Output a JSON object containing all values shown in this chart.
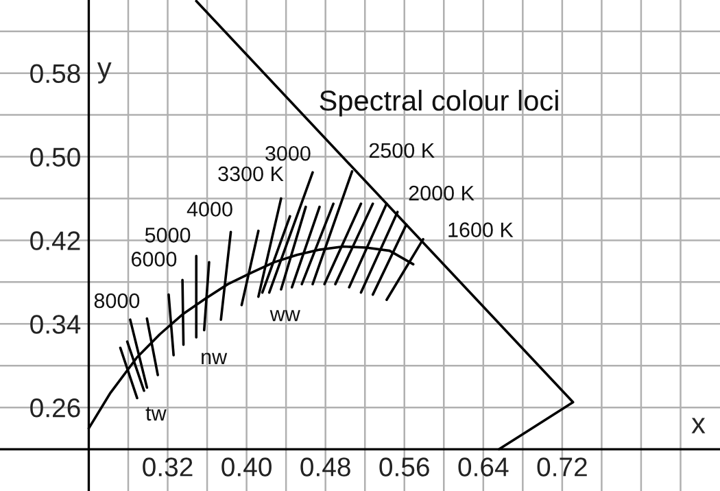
{
  "chart_data": {
    "type": "line",
    "xlabel": "x",
    "ylabel": "y",
    "xlim": [
      0.15,
      0.88
    ],
    "ylim": [
      0.18,
      0.65
    ],
    "xticks": [
      {
        "value": 0.28,
        "label": null
      },
      0.32,
      {
        "value": 0.36,
        "label": null
      },
      {
        "value": 0.4,
        "label": "0.40"
      },
      {
        "value": 0.44,
        "label": null
      },
      0.48,
      {
        "value": 0.52,
        "label": null
      },
      0.56,
      {
        "value": 0.6,
        "label": null
      },
      0.64,
      {
        "value": 0.68,
        "label": null
      },
      0.72,
      {
        "value": 0.76,
        "label": null
      },
      {
        "value": 0.8,
        "label": null
      },
      {
        "value": 0.84,
        "label": null
      }
    ],
    "yticks": [
      0.26,
      {
        "value": 0.3,
        "label": null
      },
      0.34,
      {
        "value": 0.38,
        "label": null
      },
      0.42,
      {
        "value": 0.46,
        "label": null
      },
      {
        "value": 0.5,
        "label": "0.50"
      },
      {
        "value": 0.54,
        "label": null
      },
      0.58,
      {
        "value": 0.62,
        "label": null
      }
    ],
    "grid": true,
    "legend": false,
    "series": [
      {
        "color": "#000000",
        "x": [
          0.349,
          0.731,
          0.656
        ],
        "values": [
          0.649,
          0.265,
          0.22
        ]
      },
      {
        "color": "#000000",
        "x": [
          0.24,
          0.262,
          0.289,
          0.312,
          0.335,
          0.358,
          0.381,
          0.405,
          0.428,
          0.451,
          0.474,
          0.498,
          0.521,
          0.545,
          0.569
        ],
        "values": [
          0.24,
          0.274,
          0.308,
          0.33,
          0.349,
          0.364,
          0.378,
          0.389,
          0.399,
          0.406,
          0.411,
          0.414,
          0.413,
          0.41,
          0.397
        ]
      },
      {
        "color": "#000000",
        "x": [
          0.272,
          0.289,
          null,
          0.279,
          0.296,
          null,
          0.282,
          0.299,
          null,
          0.299,
          0.31
        ],
        "values": [
          0.317,
          0.269,
          null,
          0.323,
          0.276,
          null,
          0.344,
          0.279,
          null,
          0.345,
          0.291
        ]
      },
      {
        "color": "#000000",
        "x": [
          0.321,
          0.326,
          null,
          0.335,
          0.336,
          null,
          0.349,
          0.349,
          null,
          0.362,
          0.357,
          null,
          0.384,
          0.374,
          null,
          0.412,
          0.395
        ],
        "values": [
          0.368,
          0.31,
          null,
          0.382,
          0.32,
          null,
          0.405,
          0.327,
          null,
          0.399,
          0.334,
          null,
          0.428,
          0.344,
          null,
          0.429,
          0.358
        ]
      },
      {
        "color": "#000000",
        "x": [
          0.412,
          0.435,
          null,
          0.416,
          0.444,
          null,
          0.423,
          0.467,
          null,
          0.435,
          0.46,
          null,
          0.446,
          0.474,
          null,
          0.456,
          0.488,
          null,
          0.467,
          0.507,
          null,
          0.479,
          0.516,
          null,
          0.49,
          0.528,
          null,
          0.504,
          0.542,
          null,
          0.516,
          0.553,
          null,
          0.528,
          0.562,
          null,
          0.542,
          0.579
        ],
        "values": [
          0.366,
          0.46,
          null,
          0.37,
          0.443,
          null,
          0.37,
          0.485,
          null,
          0.373,
          0.452,
          null,
          0.375,
          0.452,
          null,
          0.378,
          0.455,
          null,
          0.378,
          0.486,
          null,
          0.378,
          0.455,
          null,
          0.378,
          0.455,
          null,
          0.375,
          0.455,
          null,
          0.37,
          0.447,
          null,
          0.368,
          0.435,
          null,
          0.363,
          0.421
        ]
      }
    ],
    "annotations": [
      "Spectral colour loci",
      {
        "text": "8000",
        "x": 0.282,
        "y": 0.344
      },
      {
        "text": "6000",
        "x": 0.335,
        "y": 0.382
      },
      {
        "text": "5000",
        "x": 0.349,
        "y": 0.405
      },
      {
        "text": "4000",
        "x": 0.384,
        "y": 0.428
      },
      {
        "text": "3300 K",
        "x": 0.435,
        "y": 0.46
      },
      {
        "text": "3000",
        "x": 0.467,
        "y": 0.485
      },
      {
        "text": "2500 K",
        "x": 0.507,
        "y": 0.486
      },
      {
        "text": "2000 K",
        "x": 0.553,
        "y": 0.447
      },
      {
        "text": "1600 K",
        "x": 0.579,
        "y": 0.421
      },
      {
        "text": "tw",
        "x": 0.31,
        "y": 0.291
      },
      {
        "text": "nw",
        "x": 0.357,
        "y": 0.334
      },
      {
        "text": "ww",
        "x": 0.412,
        "y": 0.366
      }
    ]
  }
}
